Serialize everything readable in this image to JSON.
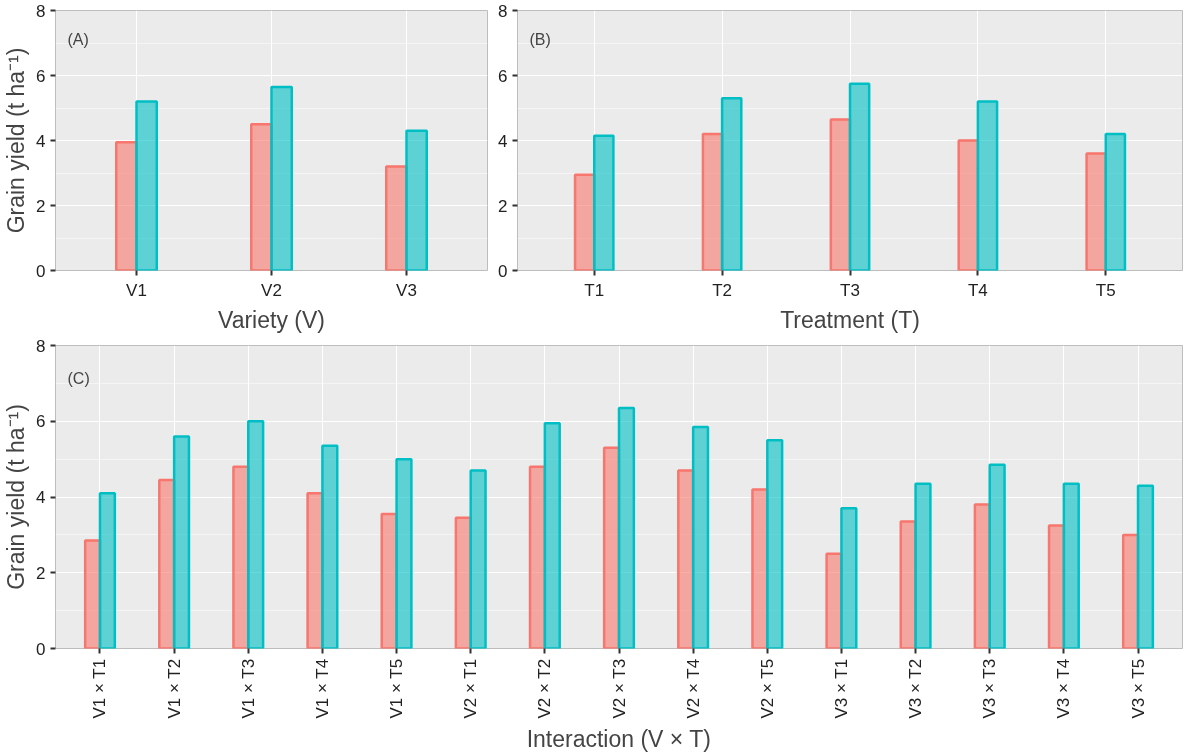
{
  "chart_data": [
    {
      "type": "bar",
      "categories": [
        "V1",
        "V2",
        "V3"
      ],
      "xlabel": "Variety (V)",
      "ylabel": "Grain yield (t ha⁻¹)",
      "annotations": [
        "(A)"
      ],
      "ylim": [
        0,
        8
      ],
      "yticks": [
        0,
        2,
        4,
        6,
        8
      ],
      "grid": true,
      "series": [
        {
          "color": "#f8766d",
          "values": [
            3.95,
            4.5,
            3.2
          ]
        },
        {
          "color": "#00bfc4",
          "values": [
            5.2,
            5.65,
            4.3
          ]
        }
      ]
    },
    {
      "type": "bar",
      "categories": [
        "T1",
        "T2",
        "T3",
        "T4",
        "T5"
      ],
      "xlabel": "Treatment (T)",
      "annotations": [
        "(B)"
      ],
      "ylim": [
        0,
        8
      ],
      "yticks": [
        0,
        2,
        4,
        6,
        8
      ],
      "grid": true,
      "series": [
        {
          "color": "#f8766d",
          "values": [
            2.95,
            4.2,
            4.65,
            4.0,
            3.6
          ]
        },
        {
          "color": "#00bfc4",
          "values": [
            4.15,
            5.3,
            5.75,
            5.2,
            4.2
          ]
        }
      ]
    },
    {
      "type": "bar",
      "categories": [
        "V1 × T1",
        "V1 × T2",
        "V1 × T3",
        "V1 × T4",
        "V1 × T5",
        "V2 × T1",
        "V2 × T2",
        "V2 × T3",
        "V2 × T4",
        "V2 × T5",
        "V3 × T1",
        "V3 × T2",
        "V3 × T3",
        "V3 × T4",
        "V3 × T5"
      ],
      "xlabel": "Interaction (V × T)",
      "ylabel": "Grain yield (t ha⁻¹)",
      "annotations": [
        "(C)"
      ],
      "ylim": [
        0,
        8
      ],
      "yticks": [
        0,
        2,
        4,
        6,
        8
      ],
      "grid": true,
      "series": [
        {
          "color": "#f8766d",
          "values": [
            2.85,
            4.45,
            4.8,
            4.1,
            3.55,
            3.45,
            4.8,
            5.3,
            4.7,
            4.2,
            2.5,
            3.35,
            3.8,
            3.25,
            3.0
          ]
        },
        {
          "color": "#00bfc4",
          "values": [
            4.1,
            5.6,
            6.0,
            5.35,
            5.0,
            4.7,
            5.95,
            6.35,
            5.85,
            5.5,
            3.7,
            4.35,
            4.85,
            4.35,
            4.3
          ]
        }
      ]
    }
  ]
}
